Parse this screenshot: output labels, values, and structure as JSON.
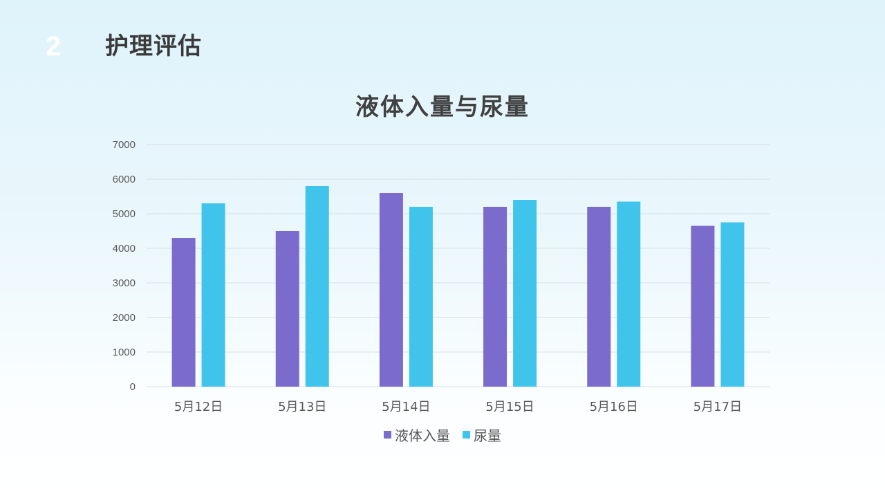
{
  "header": {
    "section_number": "2",
    "section_title": "护理评估"
  },
  "colors": {
    "series_1": "#7b6bcd",
    "series_2": "#41c4eb",
    "grid": "#d6dfe5",
    "axis_text": "#595959"
  },
  "chart_data": {
    "type": "bar",
    "title": "液体入量与尿量",
    "categories": [
      "5月12日",
      "5月13日",
      "5月14日",
      "5月15日",
      "5月16日",
      "5月17日"
    ],
    "series": [
      {
        "name": "液体入量",
        "values": [
          4300,
          4500,
          5600,
          5200,
          5200,
          4650
        ]
      },
      {
        "name": "尿量",
        "values": [
          5300,
          5800,
          5200,
          5400,
          5350,
          4750
        ]
      }
    ],
    "ylim": [
      0,
      7000
    ],
    "yticks": [
      0,
      1000,
      2000,
      3000,
      4000,
      5000,
      6000,
      7000
    ],
    "grid": true,
    "legend_position": "bottom-center"
  }
}
